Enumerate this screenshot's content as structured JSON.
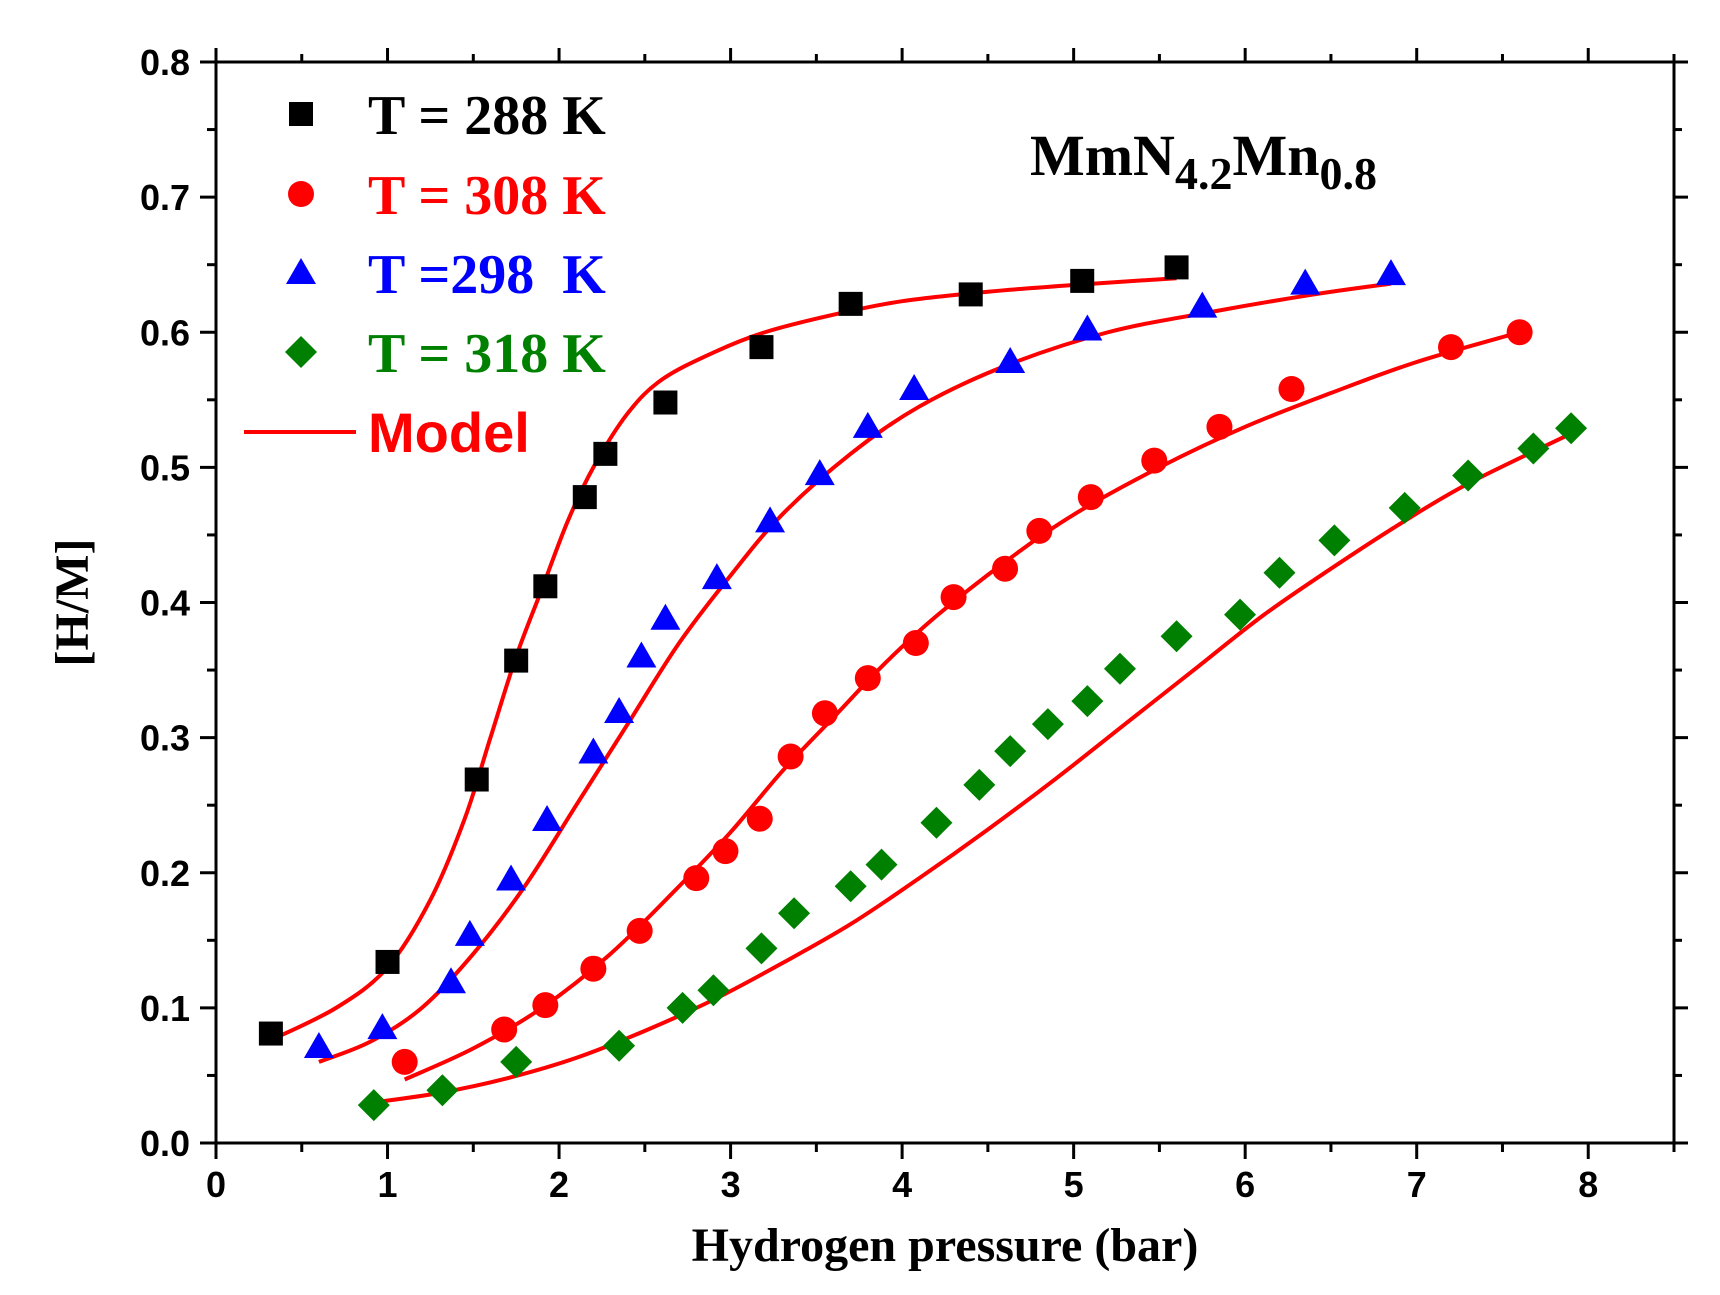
{
  "chart_data": {
    "type": "scatter",
    "title": "",
    "annotation": {
      "base1": "MmN",
      "sub1": "4.2",
      "base2": "Mn",
      "sub2": "0.8"
    },
    "xlabel": "Hydrogen pressure (bar)",
    "ylabel": "[H/M]",
    "xlim": [
      0,
      8.5
    ],
    "ylim": [
      0,
      0.8
    ],
    "x_ticks": [
      0,
      1,
      2,
      3,
      4,
      5,
      6,
      7,
      8
    ],
    "y_ticks": [
      0.0,
      0.1,
      0.2,
      0.3,
      0.4,
      0.5,
      0.6,
      0.7,
      0.8
    ],
    "x_tick_labels": [
      "0",
      "1",
      "2",
      "3",
      "4",
      "5",
      "6",
      "7",
      "8"
    ],
    "y_tick_labels": [
      "0.0",
      "0.1",
      "0.2",
      "0.3",
      "0.4",
      "0.5",
      "0.6",
      "0.7",
      "0.8"
    ],
    "grid": false,
    "legend_position": "top-left",
    "series": [
      {
        "name": "T = 288 K",
        "marker": "square",
        "color": "#000000",
        "x": [
          0.32,
          1.0,
          1.52,
          1.75,
          1.92,
          2.15,
          2.27,
          2.62,
          3.18,
          3.7,
          4.4,
          5.05,
          5.6
        ],
        "y": [
          0.081,
          0.134,
          0.269,
          0.357,
          0.412,
          0.478,
          0.51,
          0.548,
          0.589,
          0.621,
          0.628,
          0.638,
          0.648
        ]
      },
      {
        "name": "T = 308 K",
        "marker": "circle",
        "color": "#ff0000",
        "x": [
          1.1,
          1.68,
          1.92,
          2.2,
          2.47,
          2.8,
          2.97,
          3.17,
          3.35,
          3.55,
          3.8,
          4.08,
          4.3,
          4.6,
          4.8,
          5.1,
          5.47,
          5.85,
          6.27,
          7.2,
          7.6
        ],
        "y": [
          0.06,
          0.084,
          0.102,
          0.129,
          0.157,
          0.196,
          0.216,
          0.24,
          0.286,
          0.318,
          0.344,
          0.37,
          0.404,
          0.425,
          0.453,
          0.478,
          0.505,
          0.53,
          0.558,
          0.589,
          0.6
        ]
      },
      {
        "name": "T =298  K",
        "marker": "triangle",
        "color": "#0000ff",
        "x": [
          0.6,
          0.97,
          1.37,
          1.48,
          1.72,
          1.93,
          2.2,
          2.35,
          2.48,
          2.62,
          2.92,
          3.23,
          3.52,
          3.8,
          4.07,
          4.63,
          5.08,
          5.75,
          6.35,
          6.85
        ],
        "y": [
          0.071,
          0.085,
          0.119,
          0.154,
          0.195,
          0.239,
          0.289,
          0.319,
          0.36,
          0.388,
          0.418,
          0.46,
          0.495,
          0.53,
          0.558,
          0.578,
          0.602,
          0.619,
          0.636,
          0.643
        ]
      },
      {
        "name": "T = 318 K",
        "marker": "diamond",
        "color": "#008000",
        "x": [
          0.92,
          1.32,
          1.75,
          2.35,
          2.72,
          2.9,
          3.18,
          3.37,
          3.7,
          3.88,
          4.2,
          4.45,
          4.63,
          4.85,
          5.08,
          5.27,
          5.6,
          5.97,
          6.2,
          6.52,
          6.93,
          7.3,
          7.68,
          7.9
        ],
        "y": [
          0.028,
          0.039,
          0.06,
          0.072,
          0.1,
          0.113,
          0.144,
          0.17,
          0.19,
          0.206,
          0.237,
          0.265,
          0.29,
          0.31,
          0.327,
          0.351,
          0.375,
          0.391,
          0.422,
          0.446,
          0.47,
          0.494,
          0.514,
          0.529
        ]
      },
      {
        "name": "Model",
        "marker": "line",
        "color": "#ff0000",
        "curves": [
          {
            "for": "T = 288 K",
            "x": [
              0.3,
              0.7,
              1.0,
              1.25,
              1.45,
              1.6,
              1.75,
              1.9,
              2.05,
              2.2,
              2.4,
              2.6,
              2.9,
              3.2,
              3.6,
              4.0,
              4.5,
              5.0,
              5.6
            ],
            "y": [
              0.075,
              0.1,
              0.13,
              0.18,
              0.24,
              0.3,
              0.36,
              0.41,
              0.46,
              0.5,
              0.54,
              0.565,
              0.585,
              0.6,
              0.613,
              0.623,
              0.63,
              0.635,
              0.64
            ]
          },
          {
            "for": "T =298  K",
            "x": [
              0.6,
              0.9,
              1.2,
              1.5,
              1.8,
              2.1,
              2.4,
              2.7,
              3.0,
              3.3,
              3.7,
              4.1,
              4.6,
              5.2,
              5.8,
              6.4,
              6.85
            ],
            "y": [
              0.06,
              0.075,
              0.1,
              0.14,
              0.19,
              0.25,
              0.31,
              0.37,
              0.42,
              0.465,
              0.51,
              0.545,
              0.575,
              0.6,
              0.615,
              0.628,
              0.636
            ]
          },
          {
            "for": "T = 308 K",
            "x": [
              1.1,
              1.5,
              1.9,
              2.3,
              2.7,
              3.0,
              3.3,
              3.6,
              3.9,
              4.2,
              4.6,
              5.0,
              5.5,
              6.0,
              6.5,
              7.0,
              7.6
            ],
            "y": [
              0.047,
              0.07,
              0.1,
              0.14,
              0.19,
              0.23,
              0.275,
              0.315,
              0.355,
              0.39,
              0.43,
              0.465,
              0.5,
              0.53,
              0.555,
              0.578,
              0.6
            ]
          },
          {
            "for": "T = 318 K",
            "x": [
              0.92,
              1.3,
              1.7,
              2.1,
              2.5,
              2.9,
              3.3,
              3.7,
              4.1,
              4.5,
              4.9,
              5.3,
              5.7,
              6.1,
              6.5,
              6.9,
              7.3,
              7.9
            ],
            "y": [
              0.03,
              0.037,
              0.048,
              0.063,
              0.083,
              0.106,
              0.133,
              0.162,
              0.196,
              0.232,
              0.27,
              0.31,
              0.35,
              0.39,
              0.425,
              0.458,
              0.488,
              0.525
            ]
          }
        ]
      }
    ]
  }
}
